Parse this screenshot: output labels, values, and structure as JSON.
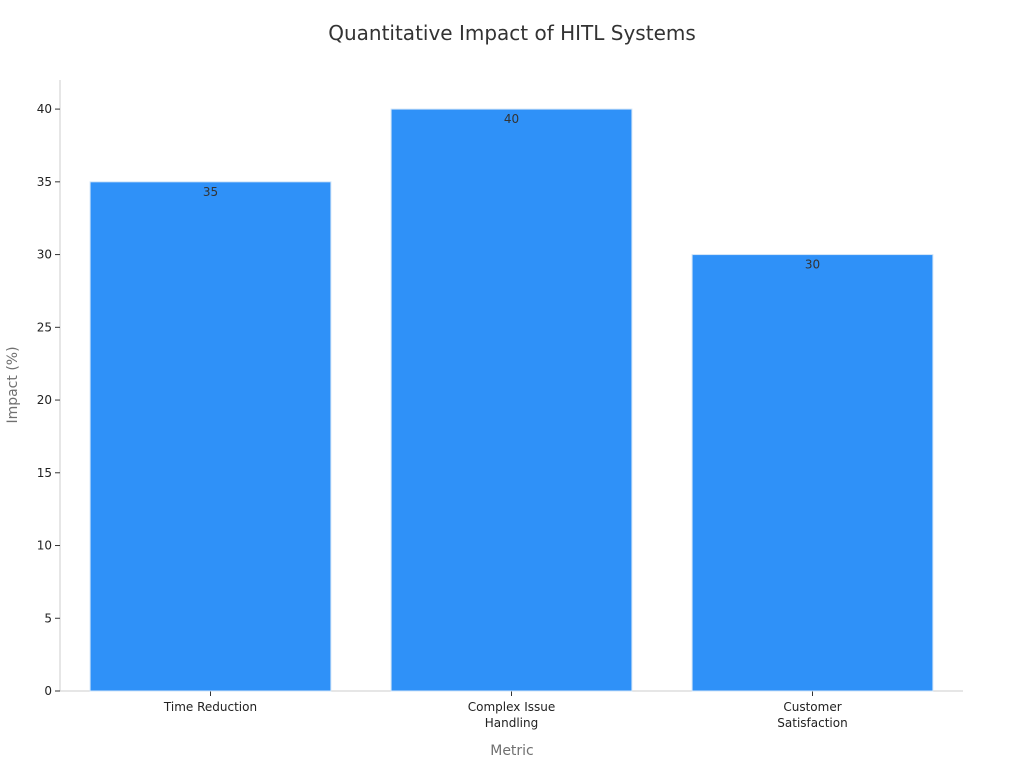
{
  "chart_data": {
    "type": "bar",
    "title": "Quantitative Impact of HITL Systems",
    "xlabel": "Metric",
    "ylabel": "Impact (%)",
    "categories": [
      [
        "Time Reduction"
      ],
      [
        "Complex Issue",
        "Handling"
      ],
      [
        "Customer",
        "Satisfaction"
      ]
    ],
    "values": [
      35,
      40,
      30
    ],
    "data_labels": [
      "35",
      "40",
      "30"
    ],
    "yticks": [
      0,
      5,
      10,
      15,
      20,
      25,
      30,
      35,
      40
    ],
    "ylim": [
      0,
      42
    ],
    "grid": false,
    "legend": "none",
    "bar_color": "#2f91f8"
  }
}
